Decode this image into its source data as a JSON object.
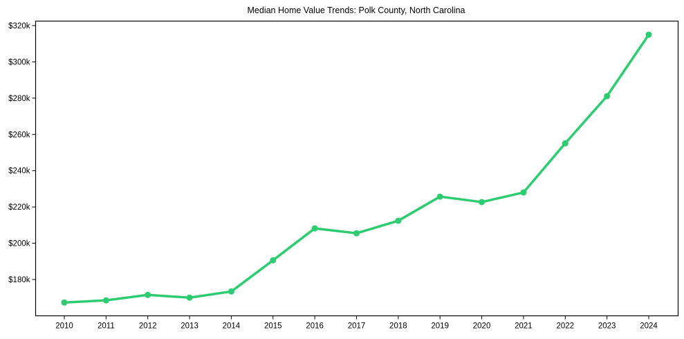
{
  "chart_data": {
    "type": "line",
    "title": "Median Home Value Trends: Polk County, North Carolina",
    "xlabel": "",
    "ylabel": "",
    "categories": [
      "2010",
      "2011",
      "2012",
      "2013",
      "2014",
      "2015",
      "2016",
      "2017",
      "2018",
      "2019",
      "2020",
      "2021",
      "2022",
      "2023",
      "2024"
    ],
    "series": [
      {
        "name": "Median Home Value",
        "color": "#2ecc71",
        "values": [
          167300,
          168500,
          171500,
          170000,
          173400,
          190600,
          208200,
          205500,
          212400,
          225700,
          222700,
          228000,
          255100,
          281100,
          315000
        ]
      }
    ],
    "yticks": [
      180000,
      200000,
      220000,
      240000,
      260000,
      280000,
      300000,
      320000
    ],
    "ytick_labels": [
      "$180k",
      "$200k",
      "$220k",
      "$240k",
      "$260k",
      "$280k",
      "$300k",
      "$320k"
    ],
    "ylim": [
      162700,
      322600
    ],
    "grid": false,
    "legend": null,
    "marker": "circle"
  }
}
